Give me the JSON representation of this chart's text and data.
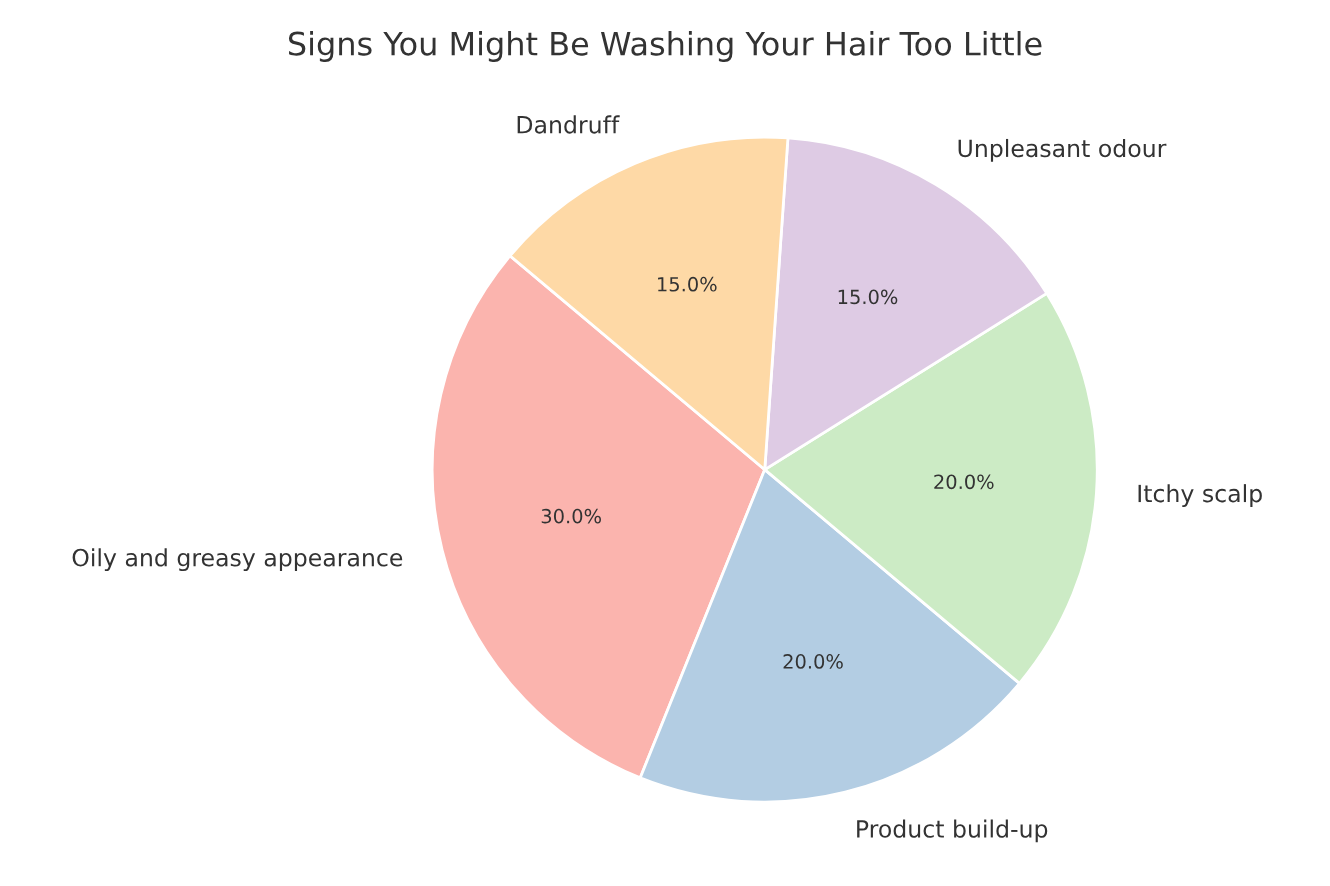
{
  "chart_data": {
    "type": "pie",
    "title": "Signs You Might Be Washing Your Hair Too Little",
    "categories": [
      "Oily and greasy appearance",
      "Product build-up",
      "Itchy scalp",
      "Unpleasant odour",
      "Dandruff"
    ],
    "values": [
      30,
      20,
      20,
      15,
      15
    ],
    "value_labels": [
      "30.0%",
      "20.0%",
      "20.0%",
      "15.0%",
      "15.0%"
    ],
    "colors": [
      "#fbb4ae",
      "#b3cde3",
      "#ccebc5",
      "#decbe4",
      "#fed9a6"
    ]
  }
}
